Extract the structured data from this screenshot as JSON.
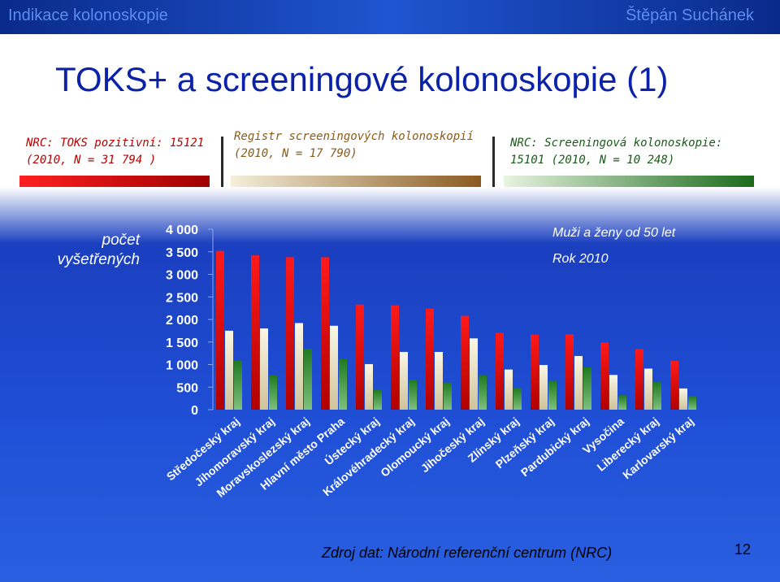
{
  "header": {
    "left_text": "Indikace kolonoskopie",
    "right_text": "Štěpán Suchánek"
  },
  "slide_title": "TOKS+ a screeningové kolonoskopie (1)",
  "legend_blocks": [
    {
      "line1": "NRC: TOKS pozitivní: 15121",
      "line2": "(2010, N = 31 794 )",
      "color": "#c00000"
    },
    {
      "line1": "Registr screeningových kolonoskopií",
      "line2": "(2010, N = 17 790)",
      "color": "#8a5a1a"
    },
    {
      "line1": "NRC: Screeningová kolonoskopie:",
      "line2": "15101 (2010, N = 10 248)",
      "color": "#1a5a1a"
    }
  ],
  "y_axis_label_lines": [
    "počet",
    "vyšetřených"
  ],
  "annotations": [
    "Muži a ženy od 50 let",
    "Rok 2010"
  ],
  "source": "Zdroj dat: Národní referenční centrum (NRC)",
  "page_number": "12",
  "chart_data": {
    "type": "bar",
    "categories": [
      "Středočeský kraj",
      "Jihomoravský kraj",
      "Moravskoslezský kraj",
      "Hlavní město Praha",
      "Ústecký kraj",
      "Královéhradecký kraj",
      "Olomoucký kraj",
      "Jihočeský kraj",
      "Zlínský kraj",
      "Plzeňský kraj",
      "Pardubický kraj",
      "Vysočina",
      "Liberecký kraj",
      "Karlovarský kraj"
    ],
    "series": [
      {
        "name": "NRC: TOKS pozitivní",
        "color": "#e00000",
        "values": [
          3520,
          3420,
          3380,
          3380,
          2330,
          2310,
          2240,
          2080,
          1700,
          1660,
          1670,
          1490,
          1340,
          1080
        ]
      },
      {
        "name": "Registr screeningových kolonoskopií",
        "color": "#f0ead0",
        "values": [
          1750,
          1800,
          1920,
          1860,
          1010,
          1280,
          1280,
          1580,
          890,
          990,
          1190,
          770,
          910,
          470
        ]
      },
      {
        "name": "NRC: Screeningová kolonoskopie",
        "color": "#2f8a2f",
        "values": [
          1080,
          760,
          1350,
          1120,
          440,
          660,
          600,
          760,
          480,
          640,
          940,
          320,
          610,
          300
        ]
      }
    ],
    "yticks": [
      "0",
      "500",
      "1 000",
      "1 500",
      "2 000",
      "2 500",
      "3 000",
      "3 500",
      "4 000"
    ],
    "ylim": [
      0,
      4000
    ],
    "grid": false,
    "legend": "none"
  }
}
